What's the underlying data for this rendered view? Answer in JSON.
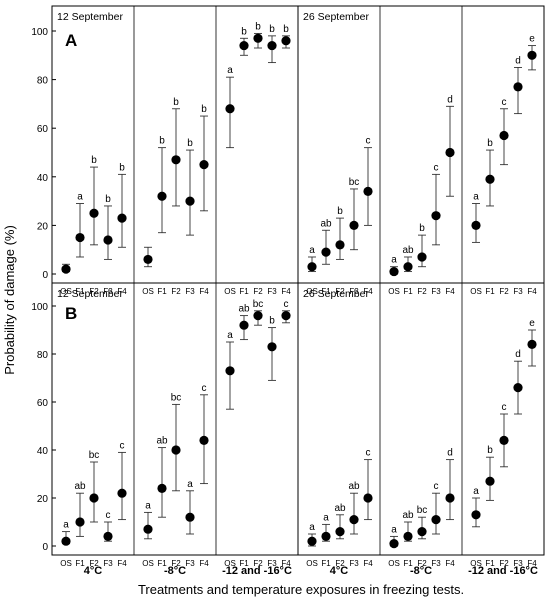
{
  "chart_data": {
    "type": "scatter",
    "ylabel": "Probability of damage (%)",
    "xlabel": "Treatments and temperature exposures in freezing tests.",
    "ylim": [
      0,
      100
    ],
    "yticks": [
      0,
      20,
      40,
      60,
      80,
      100
    ],
    "treatments": [
      "OS",
      "F1",
      "F2",
      "F3",
      "F4"
    ],
    "temperature_groups": [
      "4°C",
      "-8°C",
      "-12 and -16°C",
      "4°C",
      "-8°C",
      "-12 and -16°C"
    ],
    "grid": false,
    "error_bars": true,
    "panels": [
      {
        "panel_label": "A",
        "dates": [
          "12 September",
          "26 September"
        ],
        "groups": [
          {
            "date": "12 September",
            "temperature": "4°C",
            "points": [
              {
                "treatment": "OS",
                "value": 2,
                "low": 1,
                "high": 4,
                "letter": ""
              },
              {
                "treatment": "F1",
                "value": 15,
                "low": 7,
                "high": 29,
                "letter": "a"
              },
              {
                "treatment": "F2",
                "value": 25,
                "low": 12,
                "high": 44,
                "letter": "b"
              },
              {
                "treatment": "F3",
                "value": 14,
                "low": 6,
                "high": 28,
                "letter": "b"
              },
              {
                "treatment": "F4",
                "value": 23,
                "low": 11,
                "high": 41,
                "letter": "b"
              }
            ]
          },
          {
            "date": "12 September",
            "temperature": "-8°C",
            "points": [
              {
                "treatment": "OS",
                "value": 6,
                "low": 3,
                "high": 11,
                "letter": ""
              },
              {
                "treatment": "F1",
                "value": 32,
                "low": 17,
                "high": 52,
                "letter": "b"
              },
              {
                "treatment": "F2",
                "value": 47,
                "low": 28,
                "high": 68,
                "letter": "b"
              },
              {
                "treatment": "F3",
                "value": 30,
                "low": 16,
                "high": 51,
                "letter": "b"
              },
              {
                "treatment": "F4",
                "value": 45,
                "low": 26,
                "high": 65,
                "letter": "b"
              }
            ]
          },
          {
            "date": "12 September",
            "temperature": "-12 and -16°C",
            "points": [
              {
                "treatment": "OS",
                "value": 68,
                "low": 52,
                "high": 81,
                "letter": "a"
              },
              {
                "treatment": "F1",
                "value": 94,
                "low": 90,
                "high": 97,
                "letter": "b"
              },
              {
                "treatment": "F2",
                "value": 97,
                "low": 93,
                "high": 99,
                "letter": "b"
              },
              {
                "treatment": "F3",
                "value": 94,
                "low": 87,
                "high": 98,
                "letter": "b"
              },
              {
                "treatment": "F4",
                "value": 96,
                "low": 93,
                "high": 98,
                "letter": "b"
              }
            ]
          },
          {
            "date": "26 September",
            "temperature": "4°C",
            "points": [
              {
                "treatment": "OS",
                "value": 3,
                "low": 1,
                "high": 7,
                "letter": "a"
              },
              {
                "treatment": "F1",
                "value": 9,
                "low": 4,
                "high": 18,
                "letter": "ab"
              },
              {
                "treatment": "F2",
                "value": 12,
                "low": 6,
                "high": 23,
                "letter": "b"
              },
              {
                "treatment": "F3",
                "value": 20,
                "low": 10,
                "high": 35,
                "letter": "bc"
              },
              {
                "treatment": "F4",
                "value": 34,
                "low": 20,
                "high": 52,
                "letter": "c"
              }
            ]
          },
          {
            "date": "26 September",
            "temperature": "-8°C",
            "points": [
              {
                "treatment": "OS",
                "value": 1,
                "low": 0,
                "high": 3,
                "letter": "a"
              },
              {
                "treatment": "F1",
                "value": 3,
                "low": 1,
                "high": 7,
                "letter": "ab"
              },
              {
                "treatment": "F2",
                "value": 7,
                "low": 3,
                "high": 16,
                "letter": "b"
              },
              {
                "treatment": "F3",
                "value": 24,
                "low": 12,
                "high": 41,
                "letter": "c"
              },
              {
                "treatment": "F4",
                "value": 50,
                "low": 32,
                "high": 69,
                "letter": "d"
              }
            ]
          },
          {
            "date": "26 September",
            "temperature": "-12 and -16°C",
            "points": [
              {
                "treatment": "OS",
                "value": 20,
                "low": 13,
                "high": 29,
                "letter": "a"
              },
              {
                "treatment": "F1",
                "value": 39,
                "low": 28,
                "high": 51,
                "letter": "b"
              },
              {
                "treatment": "F2",
                "value": 57,
                "low": 45,
                "high": 68,
                "letter": "c"
              },
              {
                "treatment": "F3",
                "value": 77,
                "low": 66,
                "high": 85,
                "letter": "d"
              },
              {
                "treatment": "F4",
                "value": 90,
                "low": 84,
                "high": 94,
                "letter": "e"
              }
            ]
          }
        ]
      },
      {
        "panel_label": "B",
        "dates": [
          "12 September",
          "26 September"
        ],
        "groups": [
          {
            "date": "12 September",
            "temperature": "4°C",
            "points": [
              {
                "treatment": "OS",
                "value": 2,
                "low": 1,
                "high": 6,
                "letter": "a"
              },
              {
                "treatment": "F1",
                "value": 10,
                "low": 4,
                "high": 22,
                "letter": "ab"
              },
              {
                "treatment": "F2",
                "value": 20,
                "low": 10,
                "high": 35,
                "letter": "bc"
              },
              {
                "treatment": "F3",
                "value": 4,
                "low": 2,
                "high": 10,
                "letter": "c"
              },
              {
                "treatment": "F4",
                "value": 22,
                "low": 11,
                "high": 39,
                "letter": "c"
              }
            ]
          },
          {
            "date": "12 September",
            "temperature": "-8°C",
            "points": [
              {
                "treatment": "OS",
                "value": 7,
                "low": 3,
                "high": 14,
                "letter": "a"
              },
              {
                "treatment": "F1",
                "value": 24,
                "low": 12,
                "high": 41,
                "letter": "ab"
              },
              {
                "treatment": "F2",
                "value": 40,
                "low": 23,
                "high": 59,
                "letter": "bc"
              },
              {
                "treatment": "F3",
                "value": 12,
                "low": 5,
                "high": 23,
                "letter": "a"
              },
              {
                "treatment": "F4",
                "value": 44,
                "low": 26,
                "high": 63,
                "letter": "c"
              }
            ]
          },
          {
            "date": "12 September",
            "temperature": "-12 and -16°C",
            "points": [
              {
                "treatment": "OS",
                "value": 73,
                "low": 57,
                "high": 85,
                "letter": "a"
              },
              {
                "treatment": "F1",
                "value": 92,
                "low": 86,
                "high": 96,
                "letter": "ab"
              },
              {
                "treatment": "F2",
                "value": 96,
                "low": 92,
                "high": 98,
                "letter": "bc"
              },
              {
                "treatment": "F3",
                "value": 83,
                "low": 69,
                "high": 91,
                "letter": "b"
              },
              {
                "treatment": "F4",
                "value": 96,
                "low": 93,
                "high": 98,
                "letter": "c"
              }
            ]
          },
          {
            "date": "26 September",
            "temperature": "4°C",
            "points": [
              {
                "treatment": "OS",
                "value": 2,
                "low": 0,
                "high": 5,
                "letter": "a"
              },
              {
                "treatment": "F1",
                "value": 4,
                "low": 2,
                "high": 9,
                "letter": "a"
              },
              {
                "treatment": "F2",
                "value": 6,
                "low": 3,
                "high": 13,
                "letter": "ab"
              },
              {
                "treatment": "F3",
                "value": 11,
                "low": 5,
                "high": 22,
                "letter": "ab"
              },
              {
                "treatment": "F4",
                "value": 20,
                "low": 11,
                "high": 36,
                "letter": "c"
              }
            ]
          },
          {
            "date": "26 September",
            "temperature": "-8°C",
            "points": [
              {
                "treatment": "OS",
                "value": 1,
                "low": 0,
                "high": 4,
                "letter": "a"
              },
              {
                "treatment": "F1",
                "value": 4,
                "low": 2,
                "high": 10,
                "letter": "ab"
              },
              {
                "treatment": "F2",
                "value": 6,
                "low": 3,
                "high": 12,
                "letter": "bc"
              },
              {
                "treatment": "F3",
                "value": 11,
                "low": 5,
                "high": 22,
                "letter": "c"
              },
              {
                "treatment": "F4",
                "value": 20,
                "low": 11,
                "high": 36,
                "letter": "d"
              }
            ]
          },
          {
            "date": "26 September",
            "temperature": "-12 and -16°C",
            "points": [
              {
                "treatment": "OS",
                "value": 13,
                "low": 8,
                "high": 20,
                "letter": "a"
              },
              {
                "treatment": "F1",
                "value": 27,
                "low": 19,
                "high": 37,
                "letter": "b"
              },
              {
                "treatment": "F2",
                "value": 44,
                "low": 33,
                "high": 55,
                "letter": "c"
              },
              {
                "treatment": "F3",
                "value": 66,
                "low": 55,
                "high": 77,
                "letter": "d"
              },
              {
                "treatment": "F4",
                "value": 84,
                "low": 75,
                "high": 90,
                "letter": "e"
              }
            ]
          }
        ]
      }
    ]
  }
}
